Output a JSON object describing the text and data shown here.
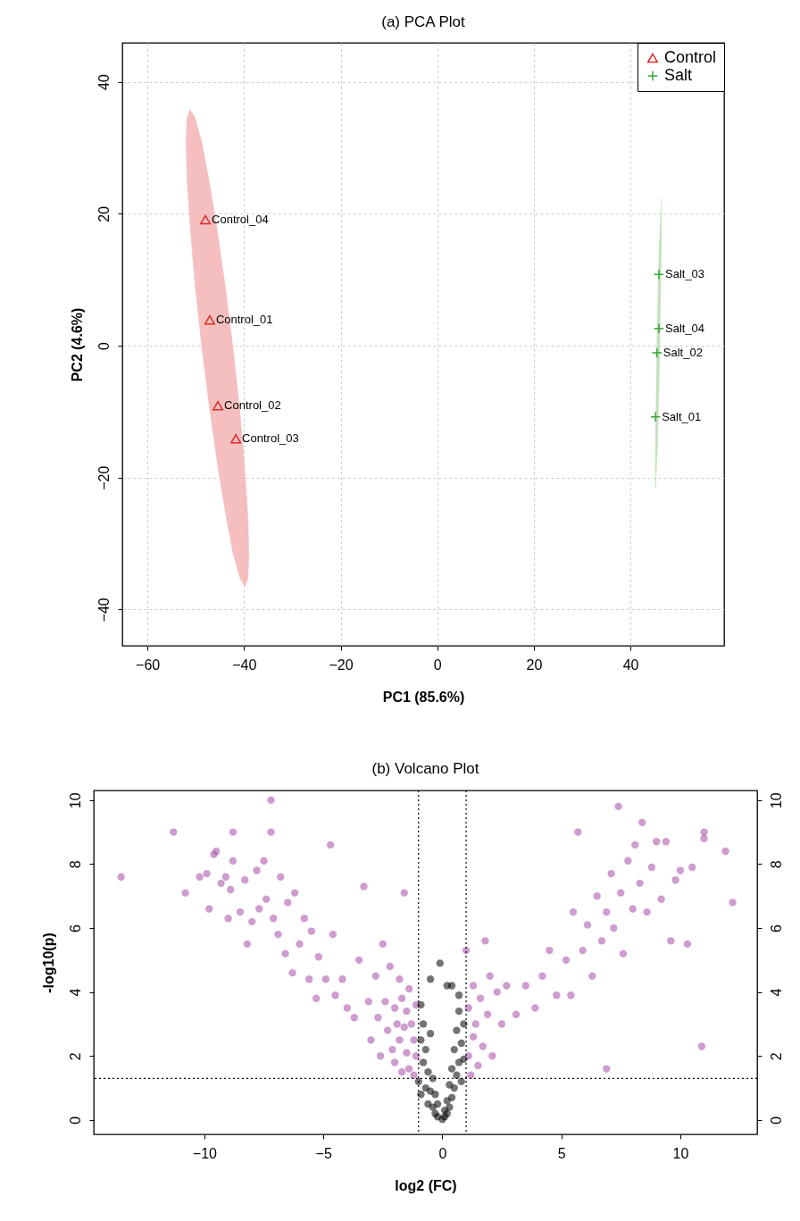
{
  "chart_data": [
    {
      "type": "scatter",
      "title": "(a) PCA Plot",
      "xlabel": "PC1 (85.6%)",
      "ylabel": "PC2 (4.6%)",
      "xlim": [
        -65.2,
        59.4
      ],
      "ylim": [
        -45.5,
        45.9
      ],
      "xticks": [
        -60,
        -40,
        -20,
        0,
        20,
        40
      ],
      "yticks": [
        -40,
        -20,
        0,
        20,
        40
      ],
      "grid": true,
      "legend": "top right",
      "series": [
        {
          "type": "area",
          "color": "#f4b4b4",
          "x": [
            -51.2,
            -50.2,
            -48.8,
            -47.3,
            -45.6,
            -43.9,
            -42.3,
            -40.9,
            -39.9,
            -39.2,
            -39,
            -39.2,
            -39.8,
            -40.8,
            -42.2,
            -43.7,
            -45.4,
            -47.1,
            -48.7,
            -50.1,
            -51.1,
            -51.8,
            -52,
            -51.8
          ],
          "values": [
            35.8,
            34.6,
            31,
            25.2,
            17.7,
            9,
            -0.4,
            -9.7,
            -18.4,
            -25.9,
            -31.7,
            -35.3,
            -36.5,
            -35.3,
            -31.7,
            -25.9,
            -18.4,
            -9.7,
            -0.4,
            9,
            17.7,
            25.2,
            31,
            34.6
          ]
        },
        {
          "type": "area",
          "color": "#b8dcb0",
          "x": [
            46.4,
            46.4,
            46.1,
            45.6,
            45.2,
            45.2,
            45.5,
            46
          ],
          "values": [
            22.5,
            16.1,
            0.5,
            -15.1,
            -21.5,
            -15.1,
            0.5,
            16.1
          ]
        },
        {
          "name": "Control",
          "color": "#df2a2a",
          "marker": "triangle",
          "x": [
            -47.1,
            -45.4,
            -41.7,
            -48
          ],
          "values": [
            3.9,
            -9.1,
            -14.1,
            19.1
          ]
        },
        {
          "name": "Salt",
          "color": "#3da33d",
          "marker": "cross",
          "x": [
            45.2,
            45.5,
            45.9,
            45.9
          ],
          "values": [
            -10.8,
            -1.1,
            10.8,
            2.6
          ]
        }
      ],
      "annotations": [
        {
          "text": "Control_01",
          "x": -47.1,
          "y": 3.9
        },
        {
          "text": "Control_02",
          "x": -45.4,
          "y": -9.1
        },
        {
          "text": "Control_03",
          "x": -41.7,
          "y": -14.1
        },
        {
          "text": "Control_04",
          "x": -48,
          "y": 19.1
        },
        {
          "text": "Salt_01",
          "x": 45.2,
          "y": -10.8
        },
        {
          "text": "Salt_02",
          "x": 45.5,
          "y": -1.1
        },
        {
          "text": "Salt_03",
          "x": 45.9,
          "y": 10.8
        },
        {
          "text": "Salt_04",
          "x": 45.9,
          "y": 2.6
        }
      ]
    },
    {
      "type": "scatter",
      "title": "(b) Volcano Plot",
      "xlabel": "log2 (FC)",
      "ylabel": "-log10(p)",
      "xlim": [
        -14.65,
        13.23
      ],
      "ylim": [
        -0.45,
        10.3
      ],
      "y2lim": [
        -0.45,
        10.3
      ],
      "xticks": [
        -10,
        -5,
        0,
        5,
        10
      ],
      "yticks": [
        0,
        2,
        4,
        6,
        8,
        10
      ],
      "y2ticks": [
        0,
        2,
        4,
        6,
        8,
        10
      ],
      "marker": "circle",
      "ref_lines": [
        {
          "axis": "x",
          "value": -1,
          "line_style": "dotted"
        },
        {
          "axis": "x",
          "value": 1,
          "line_style": "dotted"
        },
        {
          "axis": "y",
          "value": 1.3,
          "line_style": "dotted"
        }
      ],
      "series": [
        {
          "color": "#a64ca6",
          "x": [
            -13.5,
            -11.3,
            -10.8,
            -10.2,
            -9.9,
            -9.8,
            -9.6,
            -9.5,
            -9.3,
            -9.1,
            -9.0,
            -8.9,
            -8.8,
            -8.8,
            -8.5,
            -8.3,
            -8.2,
            -8.0,
            -7.8,
            -7.7,
            -7.5,
            -7.4,
            -7.2,
            -7.2,
            -7.1,
            -6.9,
            -6.8,
            -6.6,
            -6.5,
            -6.3,
            -6.2,
            -6.0,
            -5.8,
            -5.6,
            -5.5,
            -5.3,
            -5.2,
            -4.9,
            -4.7,
            -4.6,
            -4.5,
            -4.2,
            -4.0,
            -3.7,
            -3.5,
            -3.3,
            -3.1,
            -3.0,
            -2.8,
            -2.7,
            -2.6,
            -2.5,
            -2.4,
            -2.3,
            -2.2,
            -2.1,
            -2.0,
            -2.0,
            -1.9,
            -1.8,
            -1.8,
            -1.7,
            -1.7,
            -1.6,
            -1.5,
            -1.5,
            -1.4,
            -1.4,
            -1.3,
            -1.2,
            -1.2,
            -1.1,
            -1.1,
            -1.6,
            1.0,
            1.1,
            1.1,
            1.2,
            1.3,
            1.3,
            1.4,
            1.5,
            1.6,
            1.7,
            1.8,
            1.9,
            2.0,
            2.1,
            2.3,
            2.5,
            2.7,
            3.1,
            3.5,
            3.9,
            4.2,
            4.5,
            4.8,
            5.2,
            5.4,
            5.5,
            5.7,
            5.9,
            6.1,
            6.3,
            6.5,
            6.7,
            6.9,
            6.9,
            7.1,
            7.2,
            7.4,
            7.5,
            7.6,
            7.8,
            8.0,
            8.1,
            8.3,
            8.4,
            8.6,
            8.8,
            9.0,
            9.2,
            9.4,
            9.6,
            9.8,
            10.0,
            10.3,
            10.5,
            10.9,
            11.0,
            11.0,
            11.9,
            12.2
          ],
          "values": [
            7.6,
            9.0,
            7.1,
            7.6,
            7.7,
            6.6,
            8.3,
            8.4,
            7.4,
            7.6,
            6.3,
            7.2,
            9.0,
            8.1,
            6.5,
            7.5,
            5.5,
            6.2,
            7.8,
            6.6,
            8.1,
            6.9,
            10.0,
            9.0,
            6.3,
            5.8,
            7.6,
            5.2,
            6.8,
            4.6,
            7.1,
            5.5,
            6.3,
            4.4,
            5.9,
            3.8,
            5.1,
            4.4,
            8.6,
            5.8,
            3.9,
            4.4,
            3.5,
            3.2,
            5.0,
            7.3,
            3.7,
            2.5,
            4.5,
            3.2,
            2.0,
            5.5,
            3.7,
            2.8,
            4.8,
            2.2,
            3.5,
            1.8,
            3.0,
            4.4,
            2.5,
            3.8,
            1.5,
            2.9,
            3.4,
            2.1,
            4.1,
            1.6,
            3.0,
            2.5,
            1.4,
            3.6,
            2.0,
            7.1,
            5.3,
            2.0,
            3.5,
            1.4,
            4.2,
            2.6,
            3.0,
            1.7,
            3.8,
            2.3,
            5.6,
            3.3,
            4.5,
            2.0,
            4.0,
            3.0,
            4.2,
            3.3,
            4.2,
            3.5,
            4.5,
            5.3,
            3.9,
            5.0,
            3.9,
            6.5,
            9.0,
            5.3,
            6.1,
            4.5,
            7.0,
            5.6,
            1.6,
            6.5,
            7.7,
            6.0,
            9.8,
            7.1,
            5.2,
            8.1,
            6.6,
            8.6,
            7.4,
            9.3,
            6.5,
            7.9,
            8.7,
            6.9,
            8.7,
            5.6,
            7.5,
            7.8,
            5.5,
            7.9,
            2.3,
            9.0,
            8.8,
            8.4,
            6.8
          ]
        },
        {
          "color": "#000000",
          "x": [
            -1.0,
            -0.9,
            -0.9,
            -0.8,
            -0.8,
            -0.7,
            -0.7,
            -0.6,
            -0.6,
            -0.5,
            -0.5,
            -0.4,
            -0.4,
            -0.3,
            -0.3,
            -0.2,
            -0.2,
            -0.1,
            0,
            0.1,
            0.1,
            0.2,
            0.2,
            0.3,
            0.3,
            0.4,
            0.4,
            0.5,
            0.5,
            0.6,
            0.6,
            0.7,
            0.7,
            0.8,
            0.8,
            0.9,
            0.9,
            -0.1,
            0.2,
            0.4,
            -0.5,
            0.7,
            -0.9
          ],
          "values": [
            1.2,
            2.5,
            0.8,
            1.8,
            3.0,
            1.0,
            2.2,
            0.5,
            1.5,
            0.9,
            2.7,
            0.4,
            1.3,
            0.2,
            0.8,
            0.1,
            0.5,
            null,
            0.02,
            0.1,
            0.3,
            0.2,
            0.6,
            0.4,
            1.1,
            0.7,
            1.6,
            1.0,
            2.2,
            1.4,
            2.8,
            1.8,
            3.4,
            1.2,
            2.4,
            1.9,
            3.0,
            4.9,
            4.2,
            4.2,
            4.4,
            3.9,
            3.6
          ]
        }
      ]
    }
  ]
}
